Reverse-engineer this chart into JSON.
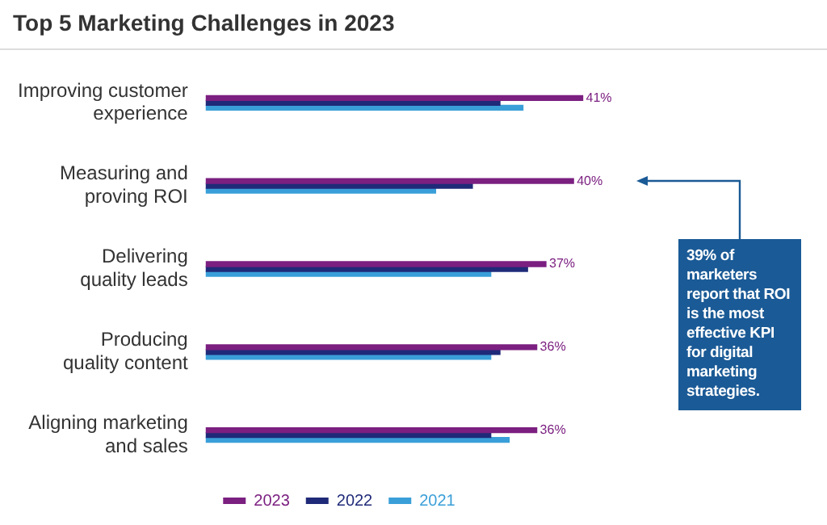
{
  "chart_data": {
    "type": "bar",
    "orientation": "horizontal",
    "title": "Top 5 Marketing Challenges in 2023",
    "categories": [
      "Improving customer experience",
      "Measuring and proving ROI",
      "Delivering quality leads",
      "Producing quality content",
      "Aligning marketing and sales"
    ],
    "series": [
      {
        "name": "2023",
        "color": "#7b1f80",
        "values": [
          41,
          40,
          37,
          36,
          36
        ],
        "value_labels": [
          "41%",
          "40%",
          "37%",
          "36%",
          "36%"
        ]
      },
      {
        "name": "2022",
        "color": "#1f2a78",
        "values": [
          32,
          29,
          35,
          32,
          31
        ]
      },
      {
        "name": "2021",
        "color": "#3a9fd8",
        "values": [
          34.5,
          25,
          31,
          31,
          33
        ]
      }
    ],
    "legend": "bottom",
    "tick_labels": "y",
    "annotations": [
      "39% of marketers report that ROI is the most effective KPI for digital marketing strategies."
    ]
  }
}
